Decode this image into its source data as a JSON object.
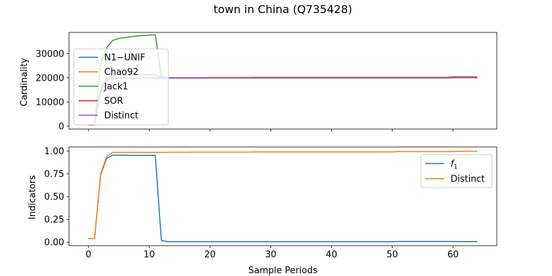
{
  "chart_data": {
    "type": "line",
    "title": "town in China (Q735428)",
    "xlabel": "Sample Periods",
    "x": [
      0,
      1,
      2,
      3,
      4,
      5,
      6,
      7,
      8,
      9,
      10,
      11,
      12,
      13,
      14,
      15,
      16,
      17,
      18,
      19,
      20,
      21,
      22,
      23,
      24,
      25,
      26,
      27,
      28,
      29,
      30,
      31,
      32,
      33,
      34,
      35,
      36,
      37,
      38,
      39,
      40,
      41,
      42,
      43,
      44,
      45,
      46,
      47,
      48,
      49,
      50,
      51,
      52,
      53,
      54,
      55,
      56,
      57,
      58,
      59,
      60,
      61,
      62,
      63,
      64
    ],
    "xlim": [
      -3.2,
      67.2
    ],
    "xticks": [
      0,
      10,
      20,
      30,
      40,
      50,
      60
    ],
    "xtick_labels": [
      "0",
      "10",
      "20",
      "30",
      "40",
      "50",
      "60"
    ],
    "panels": [
      {
        "ylabel": "Cardinality",
        "ylim": [
          -1200,
          38800
        ],
        "yticks": [
          0,
          10000,
          20000,
          30000
        ],
        "ytick_labels": [
          "0",
          "10000",
          "20000",
          "30000"
        ],
        "show_xtick_labels": false,
        "legend_position": "center-left",
        "series": [
          {
            "name": "N1−UNIF",
            "color": "#1f77b4",
            "values": [
              500,
              500,
              14000,
              19000,
              19800,
              20000,
              20000,
              20000,
              20000,
              20000,
              20000,
              20000,
              19900,
              19900,
              19900,
              19900,
              19900,
              19900,
              19900,
              19900,
              20000,
              20000,
              20000,
              20000,
              20000,
              20000,
              20000,
              20000,
              20000,
              20000,
              20000,
              20000,
              20000,
              20000,
              20000,
              20000,
              20000,
              20000,
              20000,
              20000,
              20000,
              20000,
              20000,
              20000,
              20000,
              20000,
              20000,
              20000,
              20000,
              20000,
              20000,
              20000,
              20000,
              20000,
              20000,
              20000,
              20000,
              20000,
              20000,
              20000,
              20200,
              20200,
              20200,
              20200,
              20200
            ]
          },
          {
            "name": "Chao92",
            "color": "#ff7f0e",
            "values": [
              500,
              500,
              14500,
              19300,
              20000,
              20100,
              20100,
              20100,
              20100,
              20100,
              20100,
              20100,
              20000,
              20000,
              20000,
              20000,
              20000,
              20000,
              20000,
              20000,
              20000,
              20000,
              20000,
              20000,
              20000,
              20000,
              20000,
              20000,
              20000,
              20000,
              20000,
              20000,
              20000,
              20000,
              20000,
              20000,
              20000,
              20000,
              20000,
              20000,
              20000,
              20000,
              20000,
              20000,
              20000,
              20000,
              20000,
              20000,
              20000,
              20000,
              20000,
              20000,
              20000,
              20000,
              20000,
              20000,
              20000,
              20000,
              20000,
              20000,
              20300,
              20300,
              20300,
              20300,
              20300
            ]
          },
          {
            "name": "Jack1",
            "color": "#2ca02c",
            "values": [
              500,
              500,
              26000,
              32500,
              35500,
              36300,
              36700,
              37000,
              37300,
              37500,
              37700,
              37800,
              20300,
              20000,
              20000,
              20000,
              20000,
              20000,
              20000,
              20000,
              20100,
              20100,
              20100,
              20100,
              20100,
              20100,
              20100,
              20200,
              20200,
              20200,
              20200,
              20200,
              20200,
              20200,
              20200,
              20200,
              20200,
              20200,
              20200,
              20200,
              20200,
              20200,
              20200,
              20200,
              20200,
              20200,
              20200,
              20200,
              20200,
              20200,
              20200,
              20200,
              20200,
              20200,
              20200,
              20200,
              20200,
              20200,
              20200,
              20200,
              20400,
              20400,
              20400,
              20400,
              20400
            ]
          },
          {
            "name": "SOR",
            "color": "#d62728",
            "values": [
              500,
              500,
              15000,
              19800,
              20800,
              21100,
              21200,
              21300,
              21300,
              21300,
              21300,
              21300,
              20200,
              20000,
              20000,
              20000,
              20000,
              20000,
              20000,
              20000,
              20100,
              20100,
              20100,
              20100,
              20100,
              20100,
              20100,
              20100,
              20100,
              20100,
              20100,
              20100,
              20100,
              20100,
              20100,
              20100,
              20100,
              20100,
              20100,
              20100,
              20100,
              20100,
              20100,
              20100,
              20100,
              20100,
              20100,
              20100,
              20100,
              20100,
              20100,
              20100,
              20100,
              20100,
              20100,
              20100,
              20100,
              20100,
              20100,
              20100,
              20300,
              20300,
              20300,
              20300,
              20300
            ]
          },
          {
            "name": "Distinct",
            "color": "#9467bd",
            "values": [
              500,
              500,
              14000,
              18800,
              19700,
              19900,
              19900,
              19900,
              19900,
              19900,
              19900,
              19900,
              19900,
              19900,
              19900,
              19900,
              19900,
              19900,
              19900,
              19900,
              19900,
              19900,
              19900,
              19900,
              19900,
              19900,
              19900,
              19900,
              19900,
              19900,
              19900,
              19900,
              19900,
              19900,
              19900,
              19900,
              19900,
              19900,
              19900,
              19900,
              19900,
              19900,
              19900,
              19900,
              19900,
              19900,
              19900,
              19900,
              19900,
              19900,
              19900,
              19900,
              19900,
              19900,
              19900,
              19900,
              19900,
              19900,
              19900,
              19900,
              20000,
              20000,
              20000,
              20000,
              20000
            ]
          }
        ]
      },
      {
        "ylabel": "Indicators",
        "ylim": [
          -0.0375,
          1.045
        ],
        "yticks": [
          0,
          0.25,
          0.5,
          0.75,
          1
        ],
        "ytick_labels": [
          "0.00",
          "0.25",
          "0.50",
          "0.75",
          "1.00"
        ],
        "show_xtick_labels": true,
        "legend_position": "upper-right",
        "series": [
          {
            "name": "f",
            "name_sub": "1",
            "color": "#1f77b4",
            "values": [
              0.04,
              0.04,
              0.74,
              0.92,
              0.955,
              0.955,
              0.955,
              0.952,
              0.952,
              0.952,
              0.952,
              0.952,
              0.02,
              0.005,
              0.005,
              0.005,
              0.005,
              0.005,
              0.005,
              0.005,
              0.005,
              0.005,
              0.005,
              0.005,
              0.005,
              0.005,
              0.005,
              0.005,
              0.005,
              0.005,
              0.005,
              0.005,
              0.005,
              0.005,
              0.005,
              0.005,
              0.005,
              0.005,
              0.005,
              0.005,
              0.005,
              0.005,
              0.005,
              0.005,
              0.005,
              0.005,
              0.005,
              0.005,
              0.005,
              0.005,
              0.005,
              0.008,
              0.008,
              0.008,
              0.008,
              0.008,
              0.008,
              0.008,
              0.008,
              0.008,
              0.008,
              0.006,
              0.006,
              0.006,
              0.006
            ]
          },
          {
            "name": "Distinct",
            "color": "#ff7f0e",
            "values": [
              0.04,
              0.04,
              0.75,
              0.94,
              0.985,
              0.985,
              0.985,
              0.985,
              0.985,
              0.985,
              0.985,
              0.985,
              0.986,
              0.986,
              0.987,
              0.987,
              0.987,
              0.988,
              0.988,
              0.988,
              0.988,
              0.988,
              0.988,
              0.988,
              0.988,
              0.988,
              0.988,
              0.99,
              0.99,
              0.99,
              0.99,
              0.99,
              0.99,
              0.99,
              0.99,
              0.99,
              0.99,
              0.99,
              0.99,
              0.99,
              0.99,
              0.99,
              0.99,
              0.99,
              0.99,
              0.99,
              0.99,
              0.99,
              0.99,
              0.99,
              0.99,
              0.995,
              0.995,
              0.995,
              0.995,
              0.995,
              0.995,
              0.995,
              0.995,
              0.995,
              0.995,
              0.997,
              0.997,
              0.997,
              0.997
            ]
          }
        ]
      }
    ]
  }
}
